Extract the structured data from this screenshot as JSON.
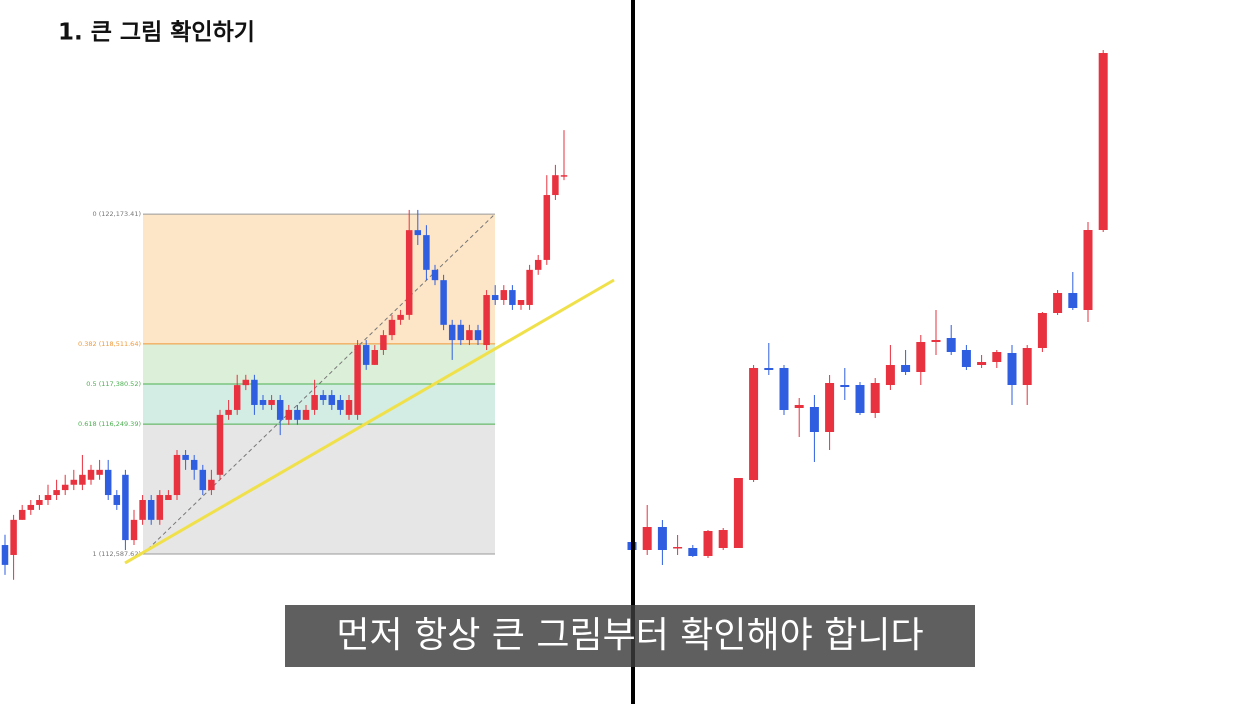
{
  "title": "1. 큰 그림 확인하기",
  "subtitle": "먼저 항상 큰 그림부터 확인해야 합니다",
  "chart_data": [
    {
      "type": "candlestick",
      "up_color": "#e8323f",
      "down_color": "#2f5fe0",
      "ylim": [
        111290,
        125390
      ],
      "open": [
        112840,
        112560,
        113550,
        113830,
        113970,
        114110,
        114250,
        114390,
        114540,
        114540,
        114680,
        114820,
        114960,
        114250,
        114820,
        112980,
        113550,
        114110,
        113550,
        114110,
        114250,
        115380,
        115240,
        114960,
        114390,
        114820,
        116510,
        116650,
        117350,
        117500,
        116930,
        116790,
        116930,
        116370,
        116650,
        116370,
        116650,
        117070,
        117070,
        116930,
        116510,
        116510,
        118480,
        117920,
        118340,
        118760,
        119190,
        119330,
        121720,
        121580,
        120600,
        120310,
        119050,
        119050,
        118620,
        118900,
        118480,
        119890,
        119750,
        120030,
        119610,
        119610,
        120600,
        120880,
        122710,
        123270
      ],
      "high": [
        113130,
        113690,
        113970,
        114110,
        114250,
        114540,
        114680,
        114820,
        114960,
        115380,
        115100,
        115240,
        115240,
        114390,
        114960,
        113830,
        114250,
        114250,
        114390,
        114390,
        115520,
        115520,
        115380,
        115100,
        114960,
        116650,
        116930,
        117640,
        117640,
        117640,
        117070,
        117070,
        117070,
        116790,
        116790,
        116790,
        117500,
        117210,
        117210,
        117070,
        117070,
        118620,
        118620,
        118480,
        118900,
        119330,
        119470,
        122290,
        122290,
        121860,
        120740,
        120460,
        119190,
        119190,
        119050,
        119050,
        120030,
        120170,
        120170,
        120170,
        119750,
        120740,
        121020,
        123270,
        123560,
        124540
      ],
      "low": [
        112000,
        111860,
        113550,
        113690,
        113830,
        113970,
        114110,
        114250,
        114390,
        114390,
        114540,
        114680,
        114110,
        113830,
        112700,
        112840,
        113410,
        113410,
        113410,
        114110,
        114110,
        114960,
        114680,
        114250,
        114250,
        114680,
        116370,
        116510,
        117210,
        116510,
        116650,
        116650,
        115940,
        116230,
        116230,
        116370,
        116510,
        116790,
        116650,
        116510,
        116370,
        116370,
        117780,
        117920,
        118200,
        118620,
        119050,
        119190,
        121300,
        120310,
        120170,
        118900,
        118060,
        118480,
        118480,
        118480,
        118340,
        119610,
        119610,
        119470,
        119470,
        119470,
        120460,
        120740,
        122570,
        123130
      ],
      "close": [
        112280,
        113550,
        113830,
        113970,
        114110,
        114250,
        114390,
        114540,
        114680,
        114820,
        114960,
        114960,
        114250,
        113970,
        112980,
        113550,
        114110,
        113550,
        114250,
        114250,
        115380,
        115240,
        114960,
        114390,
        114680,
        116510,
        116650,
        117350,
        117500,
        116790,
        116790,
        116930,
        116370,
        116650,
        116370,
        116650,
        117070,
        116930,
        116790,
        116650,
        116930,
        118480,
        117920,
        118340,
        118760,
        119190,
        119330,
        121720,
        121580,
        120600,
        120310,
        119050,
        118620,
        118620,
        118900,
        118620,
        119890,
        119750,
        120030,
        119610,
        119750,
        120600,
        120880,
        122710,
        123270,
        123270
      ],
      "fib_levels": [
        {
          "value": 122173.41,
          "label": "0 (122,173.41)",
          "color": "#999999",
          "fill": "#fde6c8"
        },
        {
          "value": 118511.64,
          "label": "0.382 (118,511.64)",
          "color": "#f09a3a",
          "fill": "#dcefd8"
        },
        {
          "value": 117380.52,
          "label": "0.5 (117,380.52)",
          "color": "#4caf50",
          "fill": "#d3ece4"
        },
        {
          "value": 116249.39,
          "label": "0.618 (116,249.39)",
          "color": "#4caf50",
          "fill": "#e6e6e6"
        },
        {
          "value": 112587.62,
          "label": "1 (112,587.62)",
          "color": "#999999"
        }
      ]
    },
    {
      "type": "candlestick",
      "up_color": "#e8323f",
      "down_color": "#2f5fe0",
      "ylim": [
        0,
        560
      ],
      "open": [
        58,
        50,
        73,
        52,
        52,
        44,
        52,
        52,
        120,
        232,
        232,
        192,
        193,
        168,
        215,
        215,
        187,
        215,
        235,
        228,
        258,
        262,
        250,
        235,
        238,
        247,
        215,
        252,
        287,
        307,
        290,
        370
      ],
      "high": [
        65,
        95,
        80,
        65,
        55,
        70,
        72,
        122,
        235,
        257,
        235,
        202,
        205,
        225,
        232,
        218,
        222,
        255,
        250,
        265,
        290,
        275,
        255,
        245,
        250,
        255,
        255,
        288,
        310,
        328,
        378,
        550
      ],
      "low": [
        50,
        45,
        35,
        45,
        43,
        42,
        50,
        52,
        118,
        225,
        185,
        163,
        138,
        150,
        200,
        185,
        182,
        210,
        225,
        215,
        245,
        245,
        230,
        232,
        232,
        195,
        195,
        248,
        285,
        290,
        278,
        368
      ],
      "close": [
        50,
        73,
        50,
        53,
        44,
        69,
        70,
        122,
        232,
        230,
        190,
        195,
        168,
        217,
        213,
        187,
        217,
        235,
        228,
        258,
        260,
        248,
        233,
        238,
        248,
        215,
        252,
        287,
        307,
        292,
        370,
        547
      ]
    }
  ]
}
